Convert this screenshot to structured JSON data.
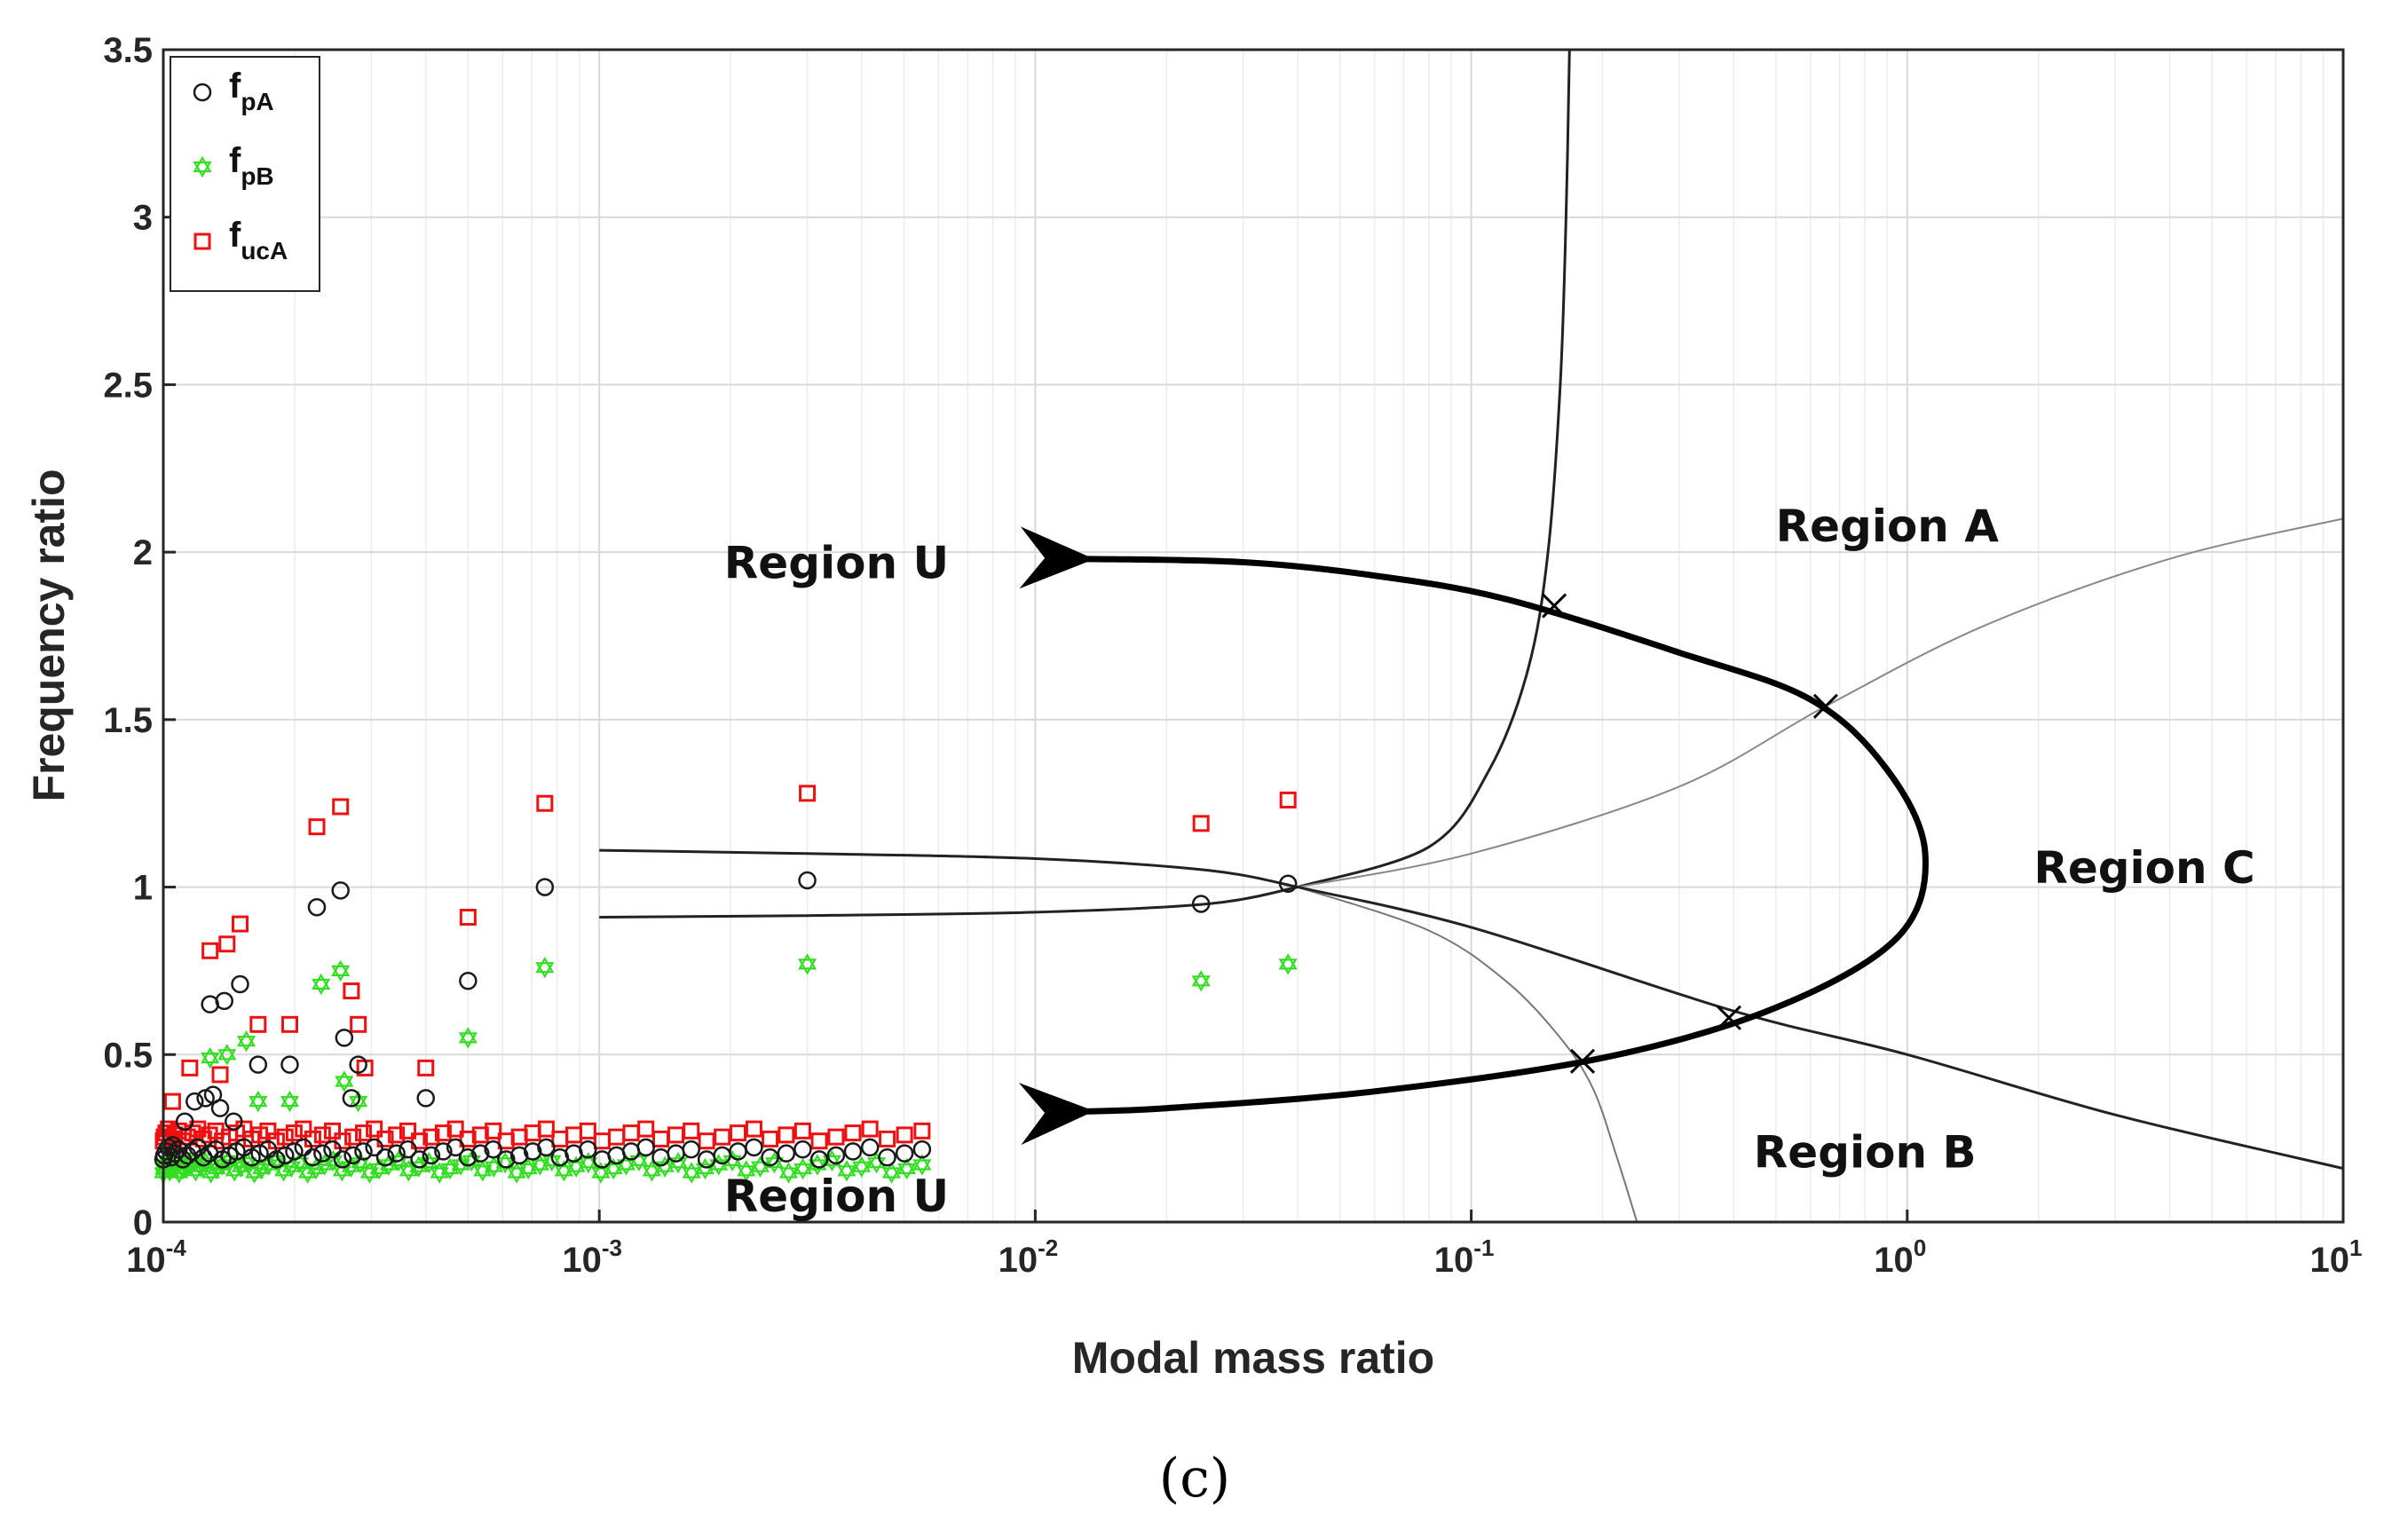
{
  "chart_data": {
    "type": "scatter",
    "xscale": "log",
    "xlim": [
      0.0001,
      10
    ],
    "ylim": [
      0,
      3.5
    ],
    "xlabel": "Modal mass ratio",
    "ylabel": "Frequency ratio",
    "caption": "(c)",
    "grid": true,
    "legend_position": "top-left",
    "x_ticks": [
      {
        "value": 0.0001,
        "base": "10",
        "exp": "-4"
      },
      {
        "value": 0.001,
        "base": "10",
        "exp": "-3"
      },
      {
        "value": 0.01,
        "base": "10",
        "exp": "-2"
      },
      {
        "value": 0.1,
        "base": "10",
        "exp": "-1"
      },
      {
        "value": 1,
        "base": "10",
        "exp": "0"
      },
      {
        "value": 10,
        "base": "10",
        "exp": "1"
      }
    ],
    "y_ticks": [
      {
        "value": 0,
        "label": "0"
      },
      {
        "value": 0.5,
        "label": "0.5"
      },
      {
        "value": 1,
        "label": "1"
      },
      {
        "value": 1.5,
        "label": "1.5"
      },
      {
        "value": 2,
        "label": "2"
      },
      {
        "value": 2.5,
        "label": "2.5"
      },
      {
        "value": 3,
        "label": "3"
      },
      {
        "value": 3.5,
        "label": "3.5"
      }
    ],
    "legend": [
      {
        "key": "fpA",
        "main": "f",
        "sub": "pA"
      },
      {
        "key": "fpB",
        "main": "f",
        "sub": "pB"
      },
      {
        "key": "fucA",
        "main": "f",
        "sub": "ucA"
      }
    ],
    "regions": [
      {
        "label": "Region A",
        "x": 0.9,
        "y": 2.08
      },
      {
        "label": "Region U",
        "x": 0.0035,
        "y": 1.97
      },
      {
        "label": "Region C",
        "x": 3.5,
        "y": 1.06
      },
      {
        "label": "Region B",
        "x": 0.8,
        "y": 0.21
      },
      {
        "label": "Region U",
        "x": 0.0035,
        "y": 0.08
      }
    ],
    "series": [
      {
        "name": "fpA",
        "marker": "circle",
        "color": "#1a1a1a",
        "points": [
          [
            0.000105,
            0.23
          ],
          [
            0.000112,
            0.3
          ],
          [
            0.000118,
            0.36
          ],
          [
            0.000125,
            0.37
          ],
          [
            0.000128,
            0.65
          ],
          [
            0.00013,
            0.38
          ],
          [
            0.000135,
            0.34
          ],
          [
            0.000138,
            0.66
          ],
          [
            0.000145,
            0.3
          ],
          [
            0.00015,
            0.71
          ],
          [
            0.000165,
            0.47
          ],
          [
            0.000195,
            0.47
          ],
          [
            0.000225,
            0.94
          ],
          [
            0.000255,
            0.99
          ],
          [
            0.00026,
            0.55
          ],
          [
            0.00027,
            0.37
          ],
          [
            0.00028,
            0.47
          ],
          [
            0.0004,
            0.37
          ],
          [
            0.0005,
            0.72
          ],
          [
            0.00075,
            1.0
          ],
          [
            0.003,
            1.02
          ],
          [
            0.024,
            0.95
          ],
          [
            0.038,
            1.01
          ]
        ],
        "band": {
          "x_from": 0.0001,
          "x_to": 0.0055,
          "y": 0.205,
          "count": 70
        }
      },
      {
        "name": "fpB",
        "marker": "hexagram",
        "color": "#33dd22",
        "points": [
          [
            0.000128,
            0.49
          ],
          [
            0.00014,
            0.5
          ],
          [
            0.000155,
            0.54
          ],
          [
            0.000165,
            0.36
          ],
          [
            0.000195,
            0.36
          ],
          [
            0.00023,
            0.71
          ],
          [
            0.000255,
            0.75
          ],
          [
            0.00026,
            0.42
          ],
          [
            0.00028,
            0.36
          ],
          [
            0.0005,
            0.55
          ],
          [
            0.00075,
            0.76
          ],
          [
            0.003,
            0.77
          ],
          [
            0.024,
            0.72
          ],
          [
            0.038,
            0.77
          ]
        ],
        "band": {
          "x_from": 0.0001,
          "x_to": 0.0055,
          "y": 0.165,
          "count": 80
        }
      },
      {
        "name": "fucA",
        "marker": "square",
        "color": "#ee1111",
        "points": [
          [
            0.000105,
            0.36
          ],
          [
            0.000115,
            0.46
          ],
          [
            0.000128,
            0.81
          ],
          [
            0.000135,
            0.44
          ],
          [
            0.00014,
            0.83
          ],
          [
            0.00015,
            0.89
          ],
          [
            0.000165,
            0.59
          ],
          [
            0.000195,
            0.59
          ],
          [
            0.000225,
            1.18
          ],
          [
            0.000255,
            1.24
          ],
          [
            0.00027,
            0.69
          ],
          [
            0.00028,
            0.59
          ],
          [
            0.00029,
            0.46
          ],
          [
            0.0004,
            0.46
          ],
          [
            0.0005,
            0.91
          ],
          [
            0.00075,
            1.25
          ],
          [
            0.003,
            1.28
          ],
          [
            0.024,
            1.19
          ],
          [
            0.038,
            1.26
          ]
        ],
        "band": {
          "x_from": 0.0001,
          "x_to": 0.0055,
          "y": 0.26,
          "count": 70
        }
      }
    ],
    "curves": [
      {
        "name": "boundary-A-vertical",
        "width": 3,
        "color": "#222222",
        "points": [
          [
            0.04,
            1.0
          ],
          [
            0.08,
            1.12
          ],
          [
            0.11,
            1.35
          ],
          [
            0.135,
            1.65
          ],
          [
            0.15,
            2.0
          ],
          [
            0.16,
            2.5
          ],
          [
            0.165,
            3.0
          ],
          [
            0.168,
            3.5
          ]
        ]
      },
      {
        "name": "boundary-B-vertical",
        "width": 2,
        "color": "#777777",
        "points": [
          [
            0.04,
            1.0
          ],
          [
            0.08,
            0.87
          ],
          [
            0.12,
            0.72
          ],
          [
            0.16,
            0.55
          ],
          [
            0.19,
            0.4
          ],
          [
            0.215,
            0.2
          ],
          [
            0.24,
            0.0
          ]
        ]
      },
      {
        "name": "boundary-C-upper",
        "width": 2,
        "color": "#888888",
        "points": [
          [
            0.04,
            1.0
          ],
          [
            0.1,
            1.1
          ],
          [
            0.3,
            1.3
          ],
          [
            0.65,
            1.54
          ],
          [
            1.5,
            1.78
          ],
          [
            4.0,
            1.98
          ],
          [
            10.0,
            2.1
          ]
        ]
      },
      {
        "name": "boundary-C-lower",
        "width": 3,
        "color": "#222222",
        "points": [
          [
            0.04,
            1.0
          ],
          [
            0.1,
            0.88
          ],
          [
            0.4,
            0.63
          ],
          [
            1.0,
            0.5
          ],
          [
            3.0,
            0.32
          ],
          [
            10.0,
            0.16
          ]
        ]
      },
      {
        "name": "boundary-U-upper",
        "width": 3,
        "color": "#222222",
        "points": [
          [
            0.001,
            1.11
          ],
          [
            0.003,
            1.1
          ],
          [
            0.01,
            1.085
          ],
          [
            0.025,
            1.05
          ],
          [
            0.04,
            1.0
          ]
        ]
      },
      {
        "name": "boundary-U-lower",
        "width": 3,
        "color": "#222222",
        "points": [
          [
            0.001,
            0.91
          ],
          [
            0.003,
            0.915
          ],
          [
            0.01,
            0.925
          ],
          [
            0.025,
            0.95
          ],
          [
            0.04,
            1.0
          ]
        ]
      }
    ],
    "arrow_arc": {
      "points": [
        [
          0.0128,
          1.98
        ],
        [
          0.03,
          1.97
        ],
        [
          0.06,
          1.93
        ],
        [
          0.12,
          1.86
        ],
        [
          0.3,
          1.7
        ],
        [
          0.6,
          1.56
        ],
        [
          0.9,
          1.35
        ],
        [
          1.1,
          1.1
        ],
        [
          0.95,
          0.85
        ],
        [
          0.5,
          0.64
        ],
        [
          0.2,
          0.49
        ],
        [
          0.06,
          0.39
        ],
        [
          0.02,
          0.34
        ],
        [
          0.0128,
          0.33
        ]
      ],
      "crossings": [
        [
          0.155,
          1.84
        ],
        [
          0.65,
          1.54
        ],
        [
          0.39,
          0.61
        ],
        [
          0.18,
          0.48
        ]
      ]
    }
  }
}
